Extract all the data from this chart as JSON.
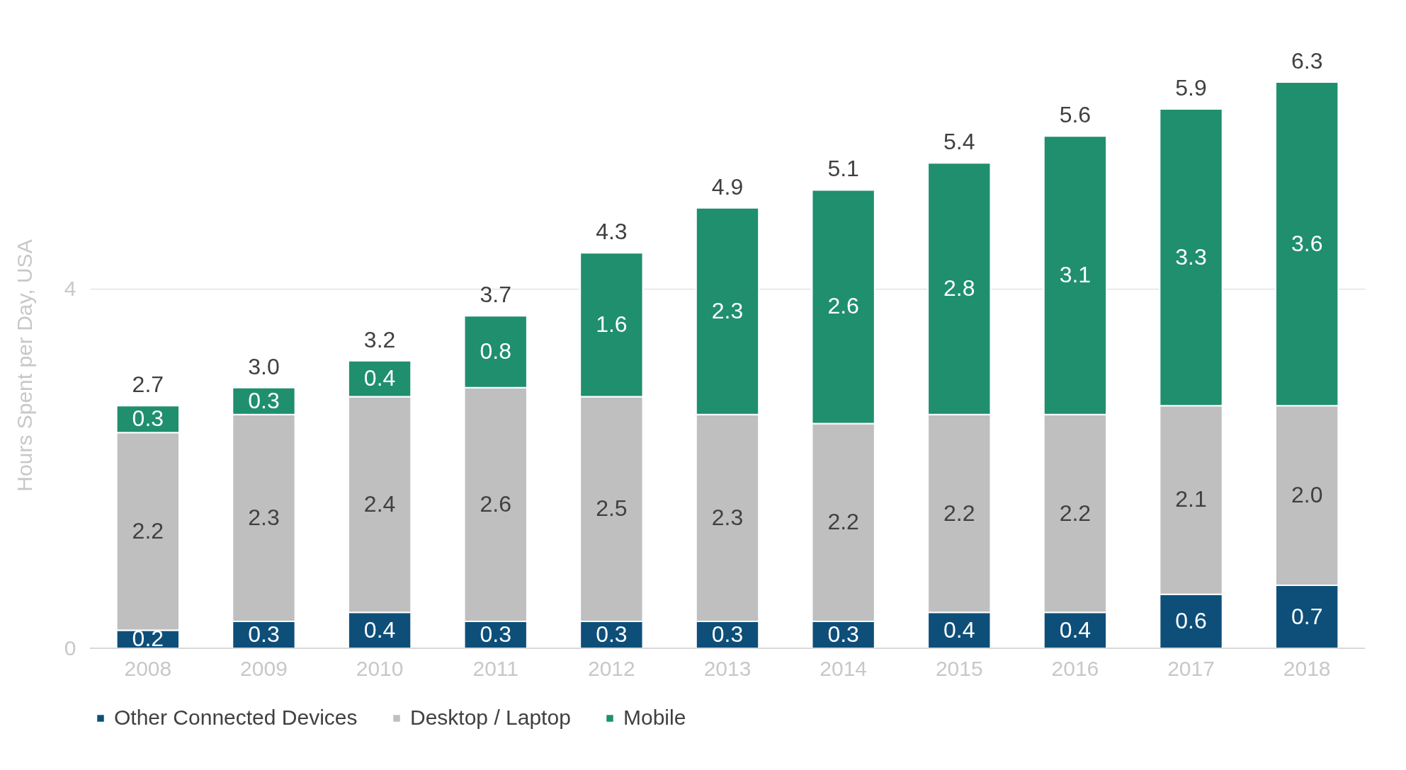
{
  "chart_data": {
    "type": "bar",
    "ylabel": "Hours Spent per Day, USA",
    "categories": [
      "2008",
      "2009",
      "2010",
      "2011",
      "2012",
      "2013",
      "2014",
      "2015",
      "2016",
      "2017",
      "2018"
    ],
    "stacked": true,
    "series": [
      {
        "name": "Other Connected Devices",
        "color": "#0d4f79",
        "values": [
          0.2,
          0.3,
          0.4,
          0.3,
          0.3,
          0.3,
          0.3,
          0.4,
          0.4,
          0.6,
          0.7
        ],
        "value_labels": [
          "0.2",
          "0.3",
          "0.4",
          "0.3",
          "0.3",
          "0.3",
          "0.3",
          "0.4",
          "0.4",
          "0.6",
          "0.7"
        ]
      },
      {
        "name": "Desktop / Laptop",
        "color": "#bfbfbf",
        "values": [
          2.2,
          2.3,
          2.4,
          2.6,
          2.5,
          2.3,
          2.2,
          2.2,
          2.2,
          2.1,
          2.0
        ],
        "value_labels": [
          "2.2",
          "2.3",
          "2.4",
          "2.6",
          "2.5",
          "2.3",
          "2.2",
          "2.2",
          "2.2",
          "2.1",
          "2.0"
        ]
      },
      {
        "name": "Mobile",
        "color": "#1f8f6e",
        "values": [
          0.3,
          0.3,
          0.4,
          0.8,
          1.6,
          2.3,
          2.6,
          2.8,
          3.1,
          3.3,
          3.6
        ],
        "value_labels": [
          "0.3",
          "0.3",
          "0.4",
          "0.8",
          "1.6",
          "2.3",
          "2.6",
          "2.8",
          "3.1",
          "3.3",
          "3.6"
        ]
      }
    ],
    "totals": [
      "2.7",
      "3.0",
      "3.2",
      "3.7",
      "4.3",
      "4.9",
      "5.1",
      "5.4",
      "5.6",
      "5.9",
      "6.3"
    ],
    "ylim": [
      0,
      6.3
    ],
    "yticks": [
      0,
      4
    ],
    "grid": "y",
    "legend": "bottom"
  }
}
